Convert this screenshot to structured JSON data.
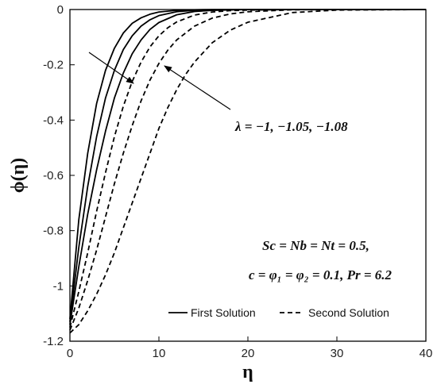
{
  "chart_data": {
    "type": "line",
    "xlabel": "η",
    "ylabel": "ϕ(η)",
    "xlim": [
      0,
      40
    ],
    "ylim": [
      -1.2,
      0
    ],
    "xticks": [
      0,
      10,
      20,
      30,
      40
    ],
    "yticks": [
      0,
      -0.2,
      -0.4,
      -0.6,
      -0.8,
      -1,
      -1.2
    ],
    "xtick_labels": [
      "0",
      "10",
      "20",
      "30",
      "40"
    ],
    "ytick_labels": [
      "0",
      "-0.2",
      "-0.4",
      "-0.6",
      "-0.8",
      "-1",
      "-1.2"
    ],
    "grid": false,
    "legend_position": "bottom-right",
    "legend": [
      {
        "label": "First Solution",
        "style": "solid"
      },
      {
        "label": "Second Solution",
        "style": "dashed"
      }
    ],
    "annotations": {
      "lambda": "λ = −1, −1.05, −1.08",
      "params_line1": "Sc = Nb = Nt = 0.5,",
      "params_line2": "c = φ₁ = φ₂ = 0.1, Pr = 6.2"
    },
    "series": [
      {
        "style": "solid",
        "x": [
          0,
          1,
          2,
          3,
          4,
          5,
          6,
          7,
          8,
          9,
          10,
          12,
          14,
          16,
          20,
          30,
          40
        ],
        "y": [
          -1.12,
          -0.76,
          -0.52,
          -0.34,
          -0.22,
          -0.14,
          -0.085,
          -0.05,
          -0.03,
          -0.017,
          -0.009,
          -0.003,
          -0.001,
          0,
          0,
          0,
          0
        ]
      },
      {
        "style": "solid",
        "x": [
          0,
          1,
          2,
          3,
          4,
          5,
          6,
          7,
          8,
          9,
          10,
          12,
          14,
          16,
          20,
          30,
          40
        ],
        "y": [
          -1.13,
          -0.86,
          -0.64,
          -0.46,
          -0.32,
          -0.22,
          -0.145,
          -0.095,
          -0.06,
          -0.037,
          -0.022,
          -0.008,
          -0.003,
          -0.001,
          0,
          0,
          0
        ]
      },
      {
        "style": "solid",
        "x": [
          0,
          1,
          2,
          3,
          4,
          5,
          6,
          7,
          8,
          9,
          10,
          12,
          14,
          16,
          20,
          30,
          40
        ],
        "y": [
          -1.14,
          -0.93,
          -0.74,
          -0.58,
          -0.44,
          -0.32,
          -0.23,
          -0.16,
          -0.11,
          -0.072,
          -0.047,
          -0.019,
          -0.007,
          -0.003,
          0,
          0,
          0
        ]
      },
      {
        "style": "dashed",
        "x": [
          0,
          1,
          2,
          3,
          4,
          5,
          6,
          7,
          8,
          9,
          10,
          11,
          12,
          14,
          16,
          18,
          20,
          25,
          30,
          40
        ],
        "y": [
          -1.15,
          -1.02,
          -0.88,
          -0.73,
          -0.59,
          -0.46,
          -0.35,
          -0.26,
          -0.19,
          -0.135,
          -0.095,
          -0.066,
          -0.045,
          -0.02,
          -0.009,
          -0.004,
          -0.002,
          0,
          0,
          0
        ]
      },
      {
        "style": "dashed",
        "x": [
          0,
          1,
          2,
          3,
          4,
          5,
          6,
          7,
          8,
          9,
          10,
          11,
          12,
          14,
          16,
          18,
          20,
          25,
          30,
          40
        ],
        "y": [
          -1.16,
          -1.08,
          -0.98,
          -0.87,
          -0.75,
          -0.63,
          -0.52,
          -0.42,
          -0.33,
          -0.255,
          -0.195,
          -0.147,
          -0.11,
          -0.06,
          -0.031,
          -0.016,
          -0.008,
          -0.001,
          0,
          0
        ]
      },
      {
        "style": "dashed",
        "x": [
          0,
          1,
          2,
          3,
          4,
          5,
          6,
          7,
          8,
          9,
          10,
          11,
          12,
          13,
          14,
          16,
          18,
          20,
          25,
          30,
          40
        ],
        "y": [
          -1.17,
          -1.14,
          -1.09,
          -1.03,
          -0.96,
          -0.88,
          -0.79,
          -0.7,
          -0.61,
          -0.52,
          -0.43,
          -0.355,
          -0.29,
          -0.235,
          -0.19,
          -0.12,
          -0.075,
          -0.046,
          -0.011,
          -0.002,
          0
        ]
      }
    ]
  }
}
